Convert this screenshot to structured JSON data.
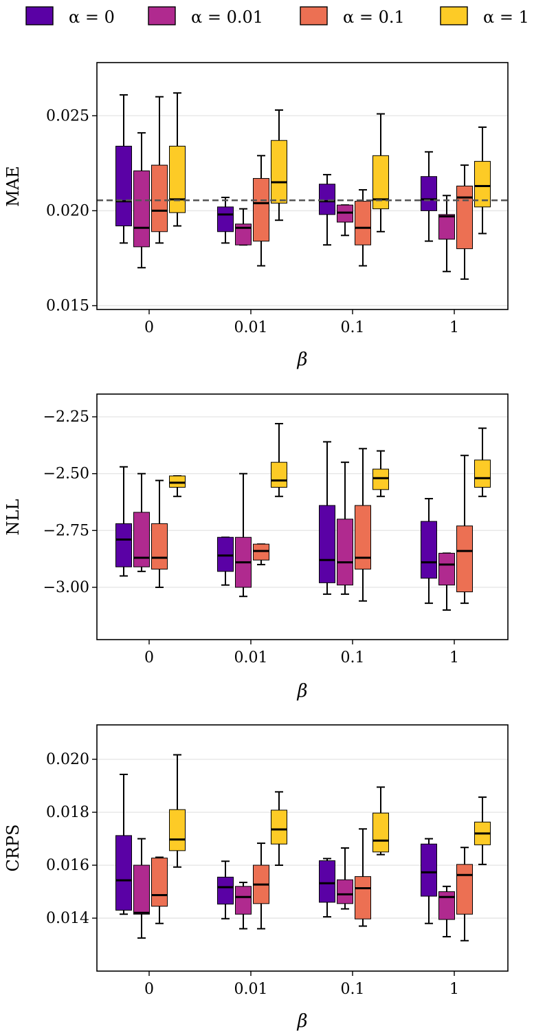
{
  "legend": {
    "entries": [
      {
        "label": "α = 0",
        "color": "#5a01a5"
      },
      {
        "label": "α = 0.01",
        "color": "#b02a8f"
      },
      {
        "label": "α = 0.1",
        "color": "#ec7053"
      },
      {
        "label": "α = 1",
        "color": "#fdcb26"
      }
    ]
  },
  "chart_data": [
    {
      "type": "box",
      "ylabel": "MAE",
      "xlabel": "β",
      "categories": [
        "0",
        "0.01",
        "0.1",
        "1"
      ],
      "ylim": [
        0.0148,
        0.0278
      ],
      "yticks": [
        0.015,
        0.02,
        0.025
      ],
      "ytick_labels": [
        "0.015",
        "0.020",
        "0.025"
      ],
      "reference_line": 0.02055,
      "series": [
        {
          "name": "α = 0",
          "boxes": [
            {
              "whislo": 0.0183,
              "q1": 0.0192,
              "med": 0.0205,
              "q3": 0.0234,
              "whishi": 0.0261
            },
            {
              "whislo": 0.0183,
              "q1": 0.0189,
              "med": 0.0198,
              "q3": 0.0202,
              "whishi": 0.0207
            },
            {
              "whislo": 0.0182,
              "q1": 0.0198,
              "med": 0.0205,
              "q3": 0.0214,
              "whishi": 0.0219
            },
            {
              "whislo": 0.0184,
              "q1": 0.02,
              "med": 0.0206,
              "q3": 0.0218,
              "whishi": 0.0231
            }
          ]
        },
        {
          "name": "α = 0.01",
          "boxes": [
            {
              "whislo": 0.017,
              "q1": 0.0181,
              "med": 0.0191,
              "q3": 0.0221,
              "whishi": 0.0241
            },
            {
              "whislo": 0.0182,
              "q1": 0.0182,
              "med": 0.0191,
              "q3": 0.0193,
              "whishi": 0.0201
            },
            {
              "whislo": 0.0187,
              "q1": 0.0194,
              "med": 0.0199,
              "q3": 0.0203,
              "whishi": 0.0203
            },
            {
              "whislo": 0.0168,
              "q1": 0.0185,
              "med": 0.0197,
              "q3": 0.0198,
              "whishi": 0.0208
            }
          ]
        },
        {
          "name": "α = 0.1",
          "boxes": [
            {
              "whislo": 0.0183,
              "q1": 0.0189,
              "med": 0.02,
              "q3": 0.0224,
              "whishi": 0.026
            },
            {
              "whislo": 0.0171,
              "q1": 0.0184,
              "med": 0.0204,
              "q3": 0.0217,
              "whishi": 0.0229
            },
            {
              "whislo": 0.0171,
              "q1": 0.0182,
              "med": 0.0191,
              "q3": 0.0205,
              "whishi": 0.0211
            },
            {
              "whislo": 0.0164,
              "q1": 0.018,
              "med": 0.0207,
              "q3": 0.0213,
              "whishi": 0.0224
            }
          ]
        },
        {
          "name": "α = 1",
          "boxes": [
            {
              "whislo": 0.0192,
              "q1": 0.0199,
              "med": 0.0206,
              "q3": 0.0234,
              "whishi": 0.0262
            },
            {
              "whislo": 0.0195,
              "q1": 0.0204,
              "med": 0.0215,
              "q3": 0.0237,
              "whishi": 0.0253
            },
            {
              "whislo": 0.0189,
              "q1": 0.0201,
              "med": 0.0206,
              "q3": 0.0229,
              "whishi": 0.0251
            },
            {
              "whislo": 0.0188,
              "q1": 0.0202,
              "med": 0.0213,
              "q3": 0.0226,
              "whishi": 0.0244
            }
          ]
        }
      ]
    },
    {
      "type": "box",
      "ylabel": "NLL",
      "xlabel": "β",
      "categories": [
        "0",
        "0.01",
        "0.1",
        "1"
      ],
      "ylim": [
        -3.23,
        -2.15
      ],
      "yticks": [
        -3.0,
        -2.75,
        -2.5,
        -2.25
      ],
      "ytick_labels": [
        "−3.00",
        "−2.75",
        "−2.50",
        "−2.25"
      ],
      "series": [
        {
          "name": "α = 0",
          "boxes": [
            {
              "whislo": -2.95,
              "q1": -2.91,
              "med": -2.79,
              "q3": -2.72,
              "whishi": -2.47
            },
            {
              "whislo": -2.99,
              "q1": -2.93,
              "med": -2.86,
              "q3": -2.78,
              "whishi": -2.78
            },
            {
              "whislo": -3.03,
              "q1": -2.98,
              "med": -2.88,
              "q3": -2.64,
              "whishi": -2.36
            },
            {
              "whislo": -3.07,
              "q1": -2.96,
              "med": -2.89,
              "q3": -2.71,
              "whishi": -2.61
            }
          ]
        },
        {
          "name": "α = 0.01",
          "boxes": [
            {
              "whislo": -2.93,
              "q1": -2.91,
              "med": -2.87,
              "q3": -2.67,
              "whishi": -2.5
            },
            {
              "whislo": -3.04,
              "q1": -3.0,
              "med": -2.89,
              "q3": -2.78,
              "whishi": -2.5
            },
            {
              "whislo": -3.03,
              "q1": -2.99,
              "med": -2.89,
              "q3": -2.7,
              "whishi": -2.45
            },
            {
              "whislo": -3.1,
              "q1": -2.99,
              "med": -2.9,
              "q3": -2.85,
              "whishi": -2.85
            }
          ]
        },
        {
          "name": "α = 0.1",
          "boxes": [
            {
              "whislo": -3.0,
              "q1": -2.92,
              "med": -2.87,
              "q3": -2.72,
              "whishi": -2.53
            },
            {
              "whislo": -2.9,
              "q1": -2.88,
              "med": -2.84,
              "q3": -2.81,
              "whishi": -2.81
            },
            {
              "whislo": -3.06,
              "q1": -2.92,
              "med": -2.87,
              "q3": -2.64,
              "whishi": -2.39
            },
            {
              "whislo": -3.07,
              "q1": -3.02,
              "med": -2.84,
              "q3": -2.73,
              "whishi": -2.42
            }
          ]
        },
        {
          "name": "α = 1",
          "boxes": [
            {
              "whislo": -2.6,
              "q1": -2.56,
              "med": -2.54,
              "q3": -2.51,
              "whishi": -2.51
            },
            {
              "whislo": -2.6,
              "q1": -2.56,
              "med": -2.53,
              "q3": -2.45,
              "whishi": -2.28
            },
            {
              "whislo": -2.6,
              "q1": -2.57,
              "med": -2.52,
              "q3": -2.48,
              "whishi": -2.4
            },
            {
              "whislo": -2.6,
              "q1": -2.56,
              "med": -2.52,
              "q3": -2.44,
              "whishi": -2.3
            }
          ]
        }
      ]
    },
    {
      "type": "box",
      "ylabel": "CRPS",
      "xlabel": "β",
      "categories": [
        "0",
        "0.01",
        "0.1",
        "1"
      ],
      "ylim": [
        0.012,
        0.0213
      ],
      "yticks": [
        0.014,
        0.016,
        0.018,
        0.02
      ],
      "ytick_labels": [
        "0.014",
        "0.016",
        "0.018",
        "0.020"
      ],
      "series": [
        {
          "name": "α = 0",
          "boxes": [
            {
              "whislo": 0.01415,
              "q1": 0.0143,
              "med": 0.01543,
              "q3": 0.01712,
              "whishi": 0.01943
            },
            {
              "whislo": 0.01398,
              "q1": 0.01453,
              "med": 0.01517,
              "q3": 0.01555,
              "whishi": 0.01615
            },
            {
              "whislo": 0.01405,
              "q1": 0.0146,
              "med": 0.01532,
              "q3": 0.01617,
              "whishi": 0.01625
            },
            {
              "whislo": 0.0138,
              "q1": 0.01483,
              "med": 0.01573,
              "q3": 0.0168,
              "whishi": 0.017
            }
          ]
        },
        {
          "name": "α = 0.01",
          "boxes": [
            {
              "whislo": 0.01325,
              "q1": 0.01415,
              "med": 0.0142,
              "q3": 0.016,
              "whishi": 0.017
            },
            {
              "whislo": 0.0136,
              "q1": 0.01415,
              "med": 0.0148,
              "q3": 0.0152,
              "whishi": 0.01535
            },
            {
              "whislo": 0.01435,
              "q1": 0.01455,
              "med": 0.0149,
              "q3": 0.01545,
              "whishi": 0.01665
            },
            {
              "whislo": 0.0133,
              "q1": 0.01395,
              "med": 0.0148,
              "q3": 0.015,
              "whishi": 0.0152
            }
          ]
        },
        {
          "name": "α = 0.1",
          "boxes": [
            {
              "whislo": 0.0138,
              "q1": 0.01445,
              "med": 0.01487,
              "q3": 0.01627,
              "whishi": 0.0163
            },
            {
              "whislo": 0.0136,
              "q1": 0.01455,
              "med": 0.01527,
              "q3": 0.016,
              "whishi": 0.01683
            },
            {
              "whislo": 0.0137,
              "q1": 0.01397,
              "med": 0.01513,
              "q3": 0.01557,
              "whishi": 0.01737
            },
            {
              "whislo": 0.01315,
              "q1": 0.01415,
              "med": 0.01563,
              "q3": 0.01603,
              "whishi": 0.01667
            }
          ]
        },
        {
          "name": "α = 1",
          "boxes": [
            {
              "whislo": 0.01593,
              "q1": 0.01655,
              "med": 0.01697,
              "q3": 0.0181,
              "whishi": 0.02017
            },
            {
              "whislo": 0.016,
              "q1": 0.0168,
              "med": 0.01735,
              "q3": 0.01808,
              "whishi": 0.01877
            },
            {
              "whislo": 0.0164,
              "q1": 0.0165,
              "med": 0.01693,
              "q3": 0.01797,
              "whishi": 0.01895
            },
            {
              "whislo": 0.01603,
              "q1": 0.01677,
              "med": 0.0172,
              "q3": 0.01763,
              "whishi": 0.01857
            }
          ]
        }
      ]
    }
  ]
}
